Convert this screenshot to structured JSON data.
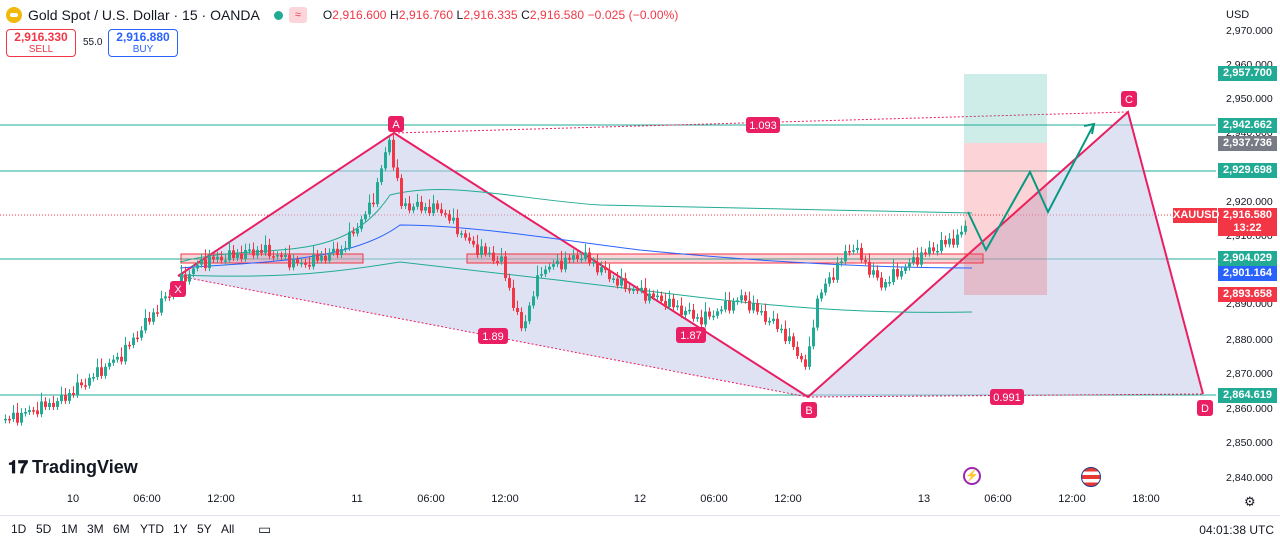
{
  "header": {
    "symbol": "Gold Spot / U.S. Dollar · 15 · OANDA",
    "wave_icon": "≈",
    "open_label": "O",
    "open": "2,916.600",
    "high_label": "H",
    "high": "2,916.760",
    "low_label": "L",
    "low": "2,916.335",
    "close_label": "C",
    "close": "2,916.580",
    "change": "−0.025 (−0.00%)"
  },
  "trade": {
    "sell_price": "2,916.330",
    "sell_label": "SELL",
    "spread": "55.0",
    "buy_price": "2,916.880",
    "buy_label": "BUY"
  },
  "currency": "USD",
  "y_axis": {
    "ticks": [
      "2,970.000",
      "2,960.000",
      "2,950.000",
      "2,940.000",
      "2,930.000",
      "2,920.000",
      "2,910.000",
      "2,900.000",
      "2,890.000",
      "2,880.000",
      "2,870.000",
      "2,860.000",
      "2,850.000",
      "2,840.000"
    ],
    "tags": [
      {
        "text": "2,957.700",
        "color": "#22ab94"
      },
      {
        "text": "2,942.662",
        "color": "#22ab94"
      },
      {
        "text": "2,937.736",
        "color": "#787b86"
      },
      {
        "text": "2,929.698",
        "color": "#22ab94"
      },
      {
        "text": "2,916.580",
        "color": "#f23645"
      },
      {
        "text": "13:22",
        "color": "#f23645"
      },
      {
        "text": "2,904.029",
        "color": "#22ab94"
      },
      {
        "text": "2,901.164",
        "color": "#2962ff"
      },
      {
        "text": "2,893.658",
        "color": "#f23645"
      },
      {
        "text": "2,864.619",
        "color": "#22ab94"
      }
    ],
    "symbol_tag": "XAUUSD"
  },
  "x_axis": {
    "ticks": [
      "10",
      "06:00",
      "12:00",
      "11",
      "06:00",
      "12:00",
      "12",
      "06:00",
      "12:00",
      "13",
      "06:00",
      "12:00",
      "18:00"
    ]
  },
  "pattern": {
    "points": [
      "X",
      "A",
      "B",
      "C",
      "D"
    ],
    "ratios": [
      "1.093",
      "1.89",
      "1.87",
      "0.991"
    ]
  },
  "branding": {
    "logo_text": "TradingView"
  },
  "timeframes": [
    "1D",
    "5D",
    "1M",
    "3M",
    "6M",
    "YTD",
    "1Y",
    "5Y",
    "All"
  ],
  "clock": "04:01:38 UTC",
  "colors": {
    "up": "#22ab94",
    "down": "#f23645",
    "pattern": "#e91e63",
    "pattern_fill": "#c5cae9",
    "blue": "#2962ff"
  }
}
